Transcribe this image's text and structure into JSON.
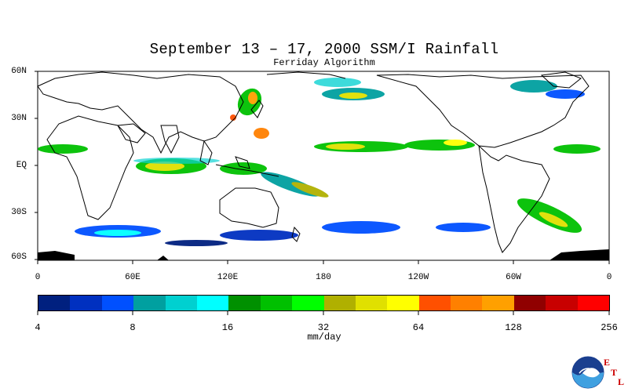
{
  "title": "September 13 – 17, 2000 SSM/I Rainfall",
  "subtitle": "Ferriday Algorithm",
  "lat_labels": [
    "60N",
    "30N",
    "EQ",
    "30S",
    "60S"
  ],
  "lon_labels": [
    "0",
    "60E",
    "120E",
    "180",
    "120W",
    "60W",
    "0"
  ],
  "colorbar": {
    "colors": [
      "#00207f",
      "#0030c0",
      "#0050ff",
      "#00a0a0",
      "#00d0d0",
      "#00ffff",
      "#009000",
      "#00c000",
      "#00ff00",
      "#b0b000",
      "#e0e000",
      "#ffff00",
      "#ff5000",
      "#ff8000",
      "#ffa000",
      "#900000",
      "#c80000",
      "#ff0000"
    ],
    "tick_labels": [
      "4",
      "8",
      "16",
      "32",
      "64",
      "128",
      "256"
    ],
    "units": "mm/day"
  },
  "credits": {
    "logo_label": "NOAA",
    "etl_letters": [
      "E",
      "T",
      "L"
    ]
  }
}
